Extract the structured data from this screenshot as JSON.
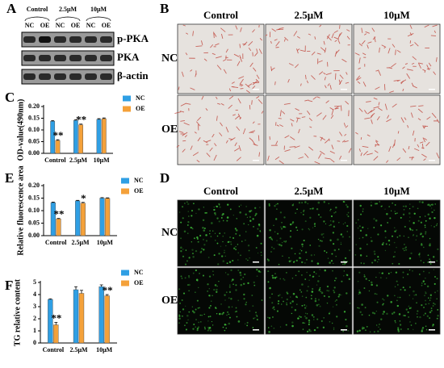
{
  "panel_labels": [
    "A",
    "B",
    "C",
    "D",
    "E",
    "F"
  ],
  "blot": {
    "groups": [
      "Control",
      "2.5μM",
      "10μM"
    ],
    "lanes": [
      "NC",
      "OE",
      "NC",
      "OE",
      "NC",
      "OE"
    ],
    "rows": [
      "p-PKA",
      "PKA",
      "β-actin"
    ]
  },
  "staining": {
    "columns": [
      "Control",
      "2.5μM",
      "10μM"
    ],
    "rows": [
      "NC",
      "OE"
    ]
  },
  "fluorescence": {
    "columns": [
      "Control",
      "2.5μM",
      "10μM"
    ],
    "rows": [
      "NC",
      "OE"
    ]
  },
  "chart_data": [
    {
      "type": "bar",
      "y_label": "OD-value(490nm)",
      "categories": [
        "Control",
        "2.5μM",
        "10μM"
      ],
      "series": [
        {
          "name": "NC",
          "color": "#2f9fe4",
          "values": [
            0.137,
            0.141,
            0.145
          ],
          "errors": [
            0.003,
            0.003,
            0.003
          ]
        },
        {
          "name": "OE",
          "color": "#f4a13a",
          "values": [
            0.055,
            0.122,
            0.148
          ],
          "errors": [
            0.003,
            0.003,
            0.003
          ],
          "annotations": [
            "**",
            "**",
            null
          ]
        }
      ],
      "ylim": [
        0,
        0.2
      ],
      "yticks": [
        {
          "value": 0,
          "label": "0.00"
        },
        0.05,
        {
          "value": 0.1,
          "label": "0.10"
        },
        0.15,
        {
          "value": 0.2,
          "label": "0.20"
        }
      ],
      "legend": "right"
    },
    {
      "type": "bar",
      "y_label": "Relative fluorescence area",
      "categories": [
        "Control",
        "2.5μM",
        "10μM"
      ],
      "series": [
        {
          "name": "NC",
          "color": "#2f9fe4",
          "values": [
            0.132,
            0.139,
            0.15
          ],
          "errors": [
            0.002,
            0.002,
            0.002
          ]
        },
        {
          "name": "OE",
          "color": "#f4a13a",
          "values": [
            0.067,
            0.13,
            0.149
          ],
          "errors": [
            0.002,
            0.003,
            0.002
          ],
          "annotations": [
            "**",
            "*",
            null
          ]
        }
      ],
      "ylim": [
        0,
        0.2
      ],
      "yticks": [
        {
          "value": 0,
          "label": "0.00"
        },
        0.05,
        {
          "value": 0.1,
          "label": "0.10"
        },
        0.15,
        {
          "value": 0.2,
          "label": "0.20"
        }
      ],
      "legend": "right"
    },
    {
      "type": "bar",
      "y_label": "TG relative content",
      "categories": [
        "Control",
        "2.5μM",
        "10μM"
      ],
      "series": [
        {
          "name": "NC",
          "color": "#2f9fe4",
          "values": [
            3.6,
            4.4,
            4.65
          ],
          "errors": [
            0.05,
            0.25,
            0.15
          ]
        },
        {
          "name": "OE",
          "color": "#f4a13a",
          "values": [
            1.5,
            4.1,
            3.9
          ],
          "errors": [
            0.2,
            0.25,
            0.1
          ],
          "annotations": [
            "**",
            null,
            "**"
          ]
        }
      ],
      "ylim": [
        0,
        5
      ],
      "yticks": [
        0,
        1,
        2,
        3,
        4,
        5
      ],
      "legend": "right"
    }
  ]
}
